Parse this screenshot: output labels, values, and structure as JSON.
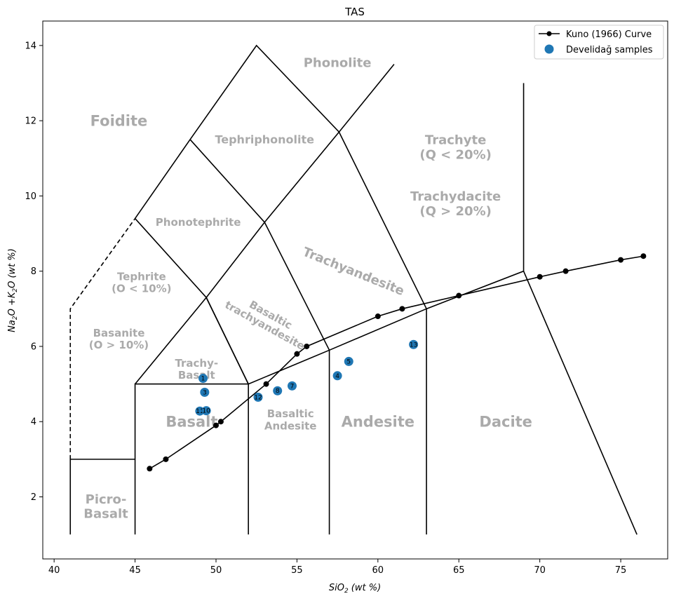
{
  "chart_data": {
    "type": "scatter",
    "title": "TAS",
    "xlabel": "SiO2 (wt %)",
    "ylabel": "Na2O +K2O (wt %)",
    "xlim": [
      39.3,
      77.9
    ],
    "ylim": [
      0.35,
      14.65
    ],
    "xticks": [
      40,
      45,
      50,
      55,
      60,
      65,
      70,
      75
    ],
    "yticks": [
      2,
      4,
      6,
      8,
      10,
      12,
      14
    ],
    "grid": false,
    "legend_position": "top-right",
    "colors": {
      "boundary": "#000000",
      "field_label": "#aaaaaa",
      "samples": "#1f77b4",
      "curve": "#000000"
    },
    "legend": [
      {
        "label": "Kuno (1966) Curve",
        "kind": "line-marker"
      },
      {
        "label": "Develidağ samples",
        "kind": "marker"
      }
    ],
    "field_boundaries": [
      {
        "dashed": false,
        "points": [
          [
            41,
            1
          ],
          [
            41,
            3
          ],
          [
            45,
            3
          ]
        ]
      },
      {
        "dashed": true,
        "points": [
          [
            41,
            3
          ],
          [
            41,
            7
          ],
          [
            45,
            9.4
          ]
        ]
      },
      {
        "dashed": false,
        "points": [
          [
            45,
            1
          ],
          [
            45,
            5
          ],
          [
            52,
            5
          ],
          [
            52,
            1
          ]
        ]
      },
      {
        "dashed": false,
        "points": [
          [
            45,
            5
          ],
          [
            49.4,
            7.3
          ],
          [
            53,
            9.3
          ],
          [
            57.6,
            11.7
          ],
          [
            61,
            13.5
          ]
        ]
      },
      {
        "dashed": false,
        "points": [
          [
            45,
            9.4
          ],
          [
            48.4,
            11.5
          ],
          [
            52.5,
            14
          ],
          [
            57.6,
            11.7
          ],
          [
            63,
            7
          ],
          [
            63,
            1
          ]
        ]
      },
      {
        "dashed": false,
        "points": [
          [
            45,
            9.4
          ],
          [
            49.4,
            7.3
          ],
          [
            52,
            5
          ]
        ]
      },
      {
        "dashed": false,
        "points": [
          [
            48.4,
            11.5
          ],
          [
            53,
            9.3
          ],
          [
            57,
            5.9
          ],
          [
            57,
            1
          ]
        ]
      },
      {
        "dashed": false,
        "points": [
          [
            49.4,
            7.3
          ],
          [
            52,
            5
          ]
        ]
      },
      {
        "dashed": false,
        "points": [
          [
            52,
            5
          ],
          [
            57,
            5.9
          ],
          [
            63,
            7
          ],
          [
            69,
            8
          ],
          [
            69,
            13
          ]
        ]
      },
      {
        "dashed": false,
        "points": [
          [
            69,
            8
          ],
          [
            76,
            1
          ]
        ]
      }
    ],
    "field_labels": [
      {
        "lines": [
          "Phonolite"
        ],
        "x": 57.5,
        "y": 13.55,
        "size": 18,
        "rotate": 0
      },
      {
        "lines": [
          "Foidite"
        ],
        "x": 44,
        "y": 12.0,
        "size": 21,
        "rotate": 0
      },
      {
        "lines": [
          "Tephriphonolite"
        ],
        "x": 53,
        "y": 11.5,
        "size": 16,
        "rotate": 0
      },
      {
        "lines": [
          "Trachyte",
          "(Q < 20%)"
        ],
        "x": 64.8,
        "y": 11.3,
        "size": 18,
        "rotate": 0
      },
      {
        "lines": [
          "Trachydacite",
          "(Q > 20%)"
        ],
        "x": 64.8,
        "y": 9.8,
        "size": 18,
        "rotate": 0
      },
      {
        "lines": [
          "Phonotephrite"
        ],
        "x": 48.9,
        "y": 9.3,
        "size": 15,
        "rotate": 0
      },
      {
        "lines": [
          "Trachyandesite"
        ],
        "x": 58.5,
        "y": 8.0,
        "size": 18,
        "rotate": 22
      },
      {
        "lines": [
          "Tephrite",
          "(O < 10%)"
        ],
        "x": 45.4,
        "y": 7.7,
        "size": 15,
        "rotate": 0
      },
      {
        "lines": [
          "Basaltic",
          "trachyandesite"
        ],
        "x": 53.2,
        "y": 6.7,
        "size": 15,
        "rotate": 29
      },
      {
        "lines": [
          "Basanite",
          "(O > 10%)"
        ],
        "x": 44,
        "y": 6.2,
        "size": 15,
        "rotate": 0
      },
      {
        "lines": [
          "Trachy-",
          "Basalt"
        ],
        "x": 48.8,
        "y": 5.4,
        "size": 15,
        "rotate": 0
      },
      {
        "lines": [
          "Basalt"
        ],
        "x": 48.5,
        "y": 4.0,
        "size": 21,
        "rotate": 0
      },
      {
        "lines": [
          "Basaltic",
          "Andesite"
        ],
        "x": 54.6,
        "y": 4.05,
        "size": 15,
        "rotate": 0
      },
      {
        "lines": [
          "Andesite"
        ],
        "x": 60,
        "y": 4.0,
        "size": 21,
        "rotate": 0
      },
      {
        "lines": [
          "Dacite"
        ],
        "x": 67.9,
        "y": 4.0,
        "size": 21,
        "rotate": 0
      },
      {
        "lines": [
          "Picro-",
          "Basalt"
        ],
        "x": 43.2,
        "y": 1.75,
        "size": 18,
        "rotate": 0
      }
    ],
    "series": [
      {
        "name": "Kuno (1966) Curve",
        "type": "line",
        "x": [
          45.9,
          46.9,
          50.0,
          50.3,
          53.1,
          55.0,
          55.6,
          60.0,
          61.5,
          65.0,
          70.0,
          71.6,
          75.0,
          76.4
        ],
        "y": [
          2.75,
          3.0,
          3.9,
          4.0,
          5.0,
          5.8,
          6.0,
          6.8,
          7.0,
          7.35,
          7.85,
          8.0,
          8.3,
          8.4
        ]
      },
      {
        "name": "Develidağ samples",
        "type": "scatter",
        "points": [
          {
            "label": "1",
            "x": 49.2,
            "y": 5.15
          },
          {
            "label": "3",
            "x": 49.3,
            "y": 4.78
          },
          {
            "label": "11",
            "x": 49.0,
            "y": 4.28
          },
          {
            "label": "10",
            "x": 49.4,
            "y": 4.29
          },
          {
            "label": "12",
            "x": 52.6,
            "y": 4.65
          },
          {
            "label": "8",
            "x": 53.8,
            "y": 4.82
          },
          {
            "label": "7",
            "x": 54.7,
            "y": 4.95
          },
          {
            "label": "4",
            "x": 57.5,
            "y": 5.22
          },
          {
            "label": "5",
            "x": 58.2,
            "y": 5.6
          },
          {
            "label": "13",
            "x": 62.2,
            "y": 6.05
          }
        ]
      }
    ]
  }
}
